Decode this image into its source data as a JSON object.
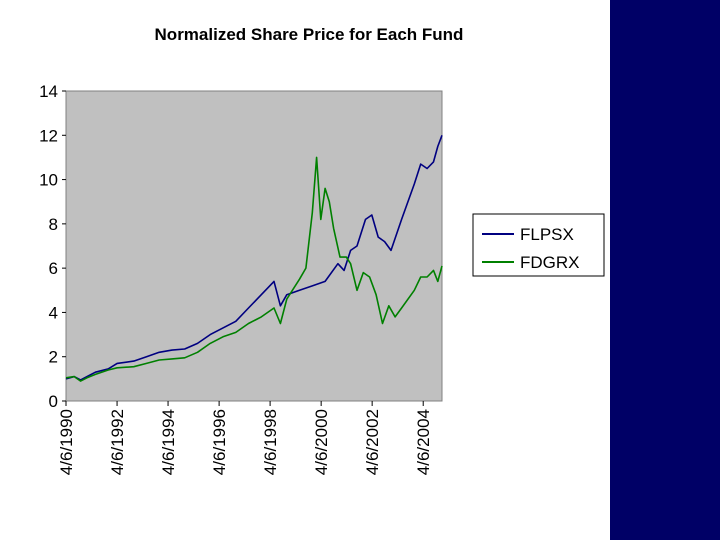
{
  "chart_data": {
    "type": "line",
    "title": "Normalized Share Price for Each Fund",
    "xlabel": "",
    "ylabel": "",
    "ylim": [
      0,
      14
    ],
    "yticks": [
      0,
      2,
      4,
      6,
      8,
      10,
      12,
      14
    ],
    "xlim": [
      "1990-04-06",
      "2004-12-31"
    ],
    "xtick_labels": [
      "4/6/1990",
      "4/6/1992",
      "4/6/1994",
      "4/6/1996",
      "4/6/1998",
      "4/6/2000",
      "4/6/2002",
      "4/6/2004"
    ],
    "xtick_dates": [
      "1990-04-06",
      "1992-04-06",
      "1994-04-06",
      "1996-04-06",
      "1998-04-06",
      "2000-04-06",
      "2002-04-06",
      "2004-04-06"
    ],
    "grid": false,
    "plot_background": "#c0c0c0",
    "legend_position": "right",
    "series": [
      {
        "name": "FLPSX",
        "color": "#000080",
        "points": [
          [
            "1990-04-06",
            1.0
          ],
          [
            "1990-08-01",
            1.1
          ],
          [
            "1990-11-01",
            0.95
          ],
          [
            "1991-02-01",
            1.1
          ],
          [
            "1991-06-01",
            1.3
          ],
          [
            "1991-12-01",
            1.45
          ],
          [
            "1992-04-06",
            1.7
          ],
          [
            "1992-12-01",
            1.8
          ],
          [
            "1993-06-01",
            2.0
          ],
          [
            "1993-12-01",
            2.2
          ],
          [
            "1994-06-01",
            2.3
          ],
          [
            "1994-12-01",
            2.35
          ],
          [
            "1995-06-01",
            2.6
          ],
          [
            "1995-12-01",
            3.0
          ],
          [
            "1996-06-01",
            3.3
          ],
          [
            "1996-12-01",
            3.6
          ],
          [
            "1997-06-01",
            4.2
          ],
          [
            "1997-12-01",
            4.8
          ],
          [
            "1998-06-01",
            5.4
          ],
          [
            "1998-09-01",
            4.3
          ],
          [
            "1998-12-01",
            4.8
          ],
          [
            "1999-06-01",
            5.0
          ],
          [
            "1999-12-01",
            5.2
          ],
          [
            "2000-06-01",
            5.4
          ],
          [
            "2000-12-01",
            6.2
          ],
          [
            "2001-03-01",
            5.9
          ],
          [
            "2001-06-01",
            6.8
          ],
          [
            "2001-09-01",
            7.0
          ],
          [
            "2002-01-01",
            8.2
          ],
          [
            "2002-04-01",
            8.4
          ],
          [
            "2002-07-01",
            7.4
          ],
          [
            "2002-10-01",
            7.2
          ],
          [
            "2003-01-01",
            6.8
          ],
          [
            "2003-06-01",
            8.2
          ],
          [
            "2003-12-01",
            9.8
          ],
          [
            "2004-03-01",
            10.7
          ],
          [
            "2004-06-01",
            10.5
          ],
          [
            "2004-09-01",
            10.8
          ],
          [
            "2004-11-01",
            11.5
          ],
          [
            "2004-12-31",
            12.0
          ]
        ]
      },
      {
        "name": "FDGRX",
        "color": "#008000",
        "points": [
          [
            "1990-04-06",
            1.05
          ],
          [
            "1990-08-01",
            1.1
          ],
          [
            "1990-11-01",
            0.9
          ],
          [
            "1991-02-01",
            1.05
          ],
          [
            "1991-06-01",
            1.2
          ],
          [
            "1991-12-01",
            1.4
          ],
          [
            "1992-04-06",
            1.5
          ],
          [
            "1992-12-01",
            1.55
          ],
          [
            "1993-06-01",
            1.7
          ],
          [
            "1993-12-01",
            1.85
          ],
          [
            "1994-06-01",
            1.9
          ],
          [
            "1994-12-01",
            1.95
          ],
          [
            "1995-06-01",
            2.2
          ],
          [
            "1995-12-01",
            2.6
          ],
          [
            "1996-06-01",
            2.9
          ],
          [
            "1996-12-01",
            3.1
          ],
          [
            "1997-06-01",
            3.5
          ],
          [
            "1997-12-01",
            3.8
          ],
          [
            "1998-06-01",
            4.2
          ],
          [
            "1998-09-01",
            3.5
          ],
          [
            "1998-12-01",
            4.6
          ],
          [
            "1999-06-01",
            5.5
          ],
          [
            "1999-09-01",
            6.0
          ],
          [
            "1999-12-01",
            8.5
          ],
          [
            "2000-02-01",
            11.0
          ],
          [
            "2000-04-01",
            8.2
          ],
          [
            "2000-06-01",
            9.6
          ],
          [
            "2000-08-01",
            9.0
          ],
          [
            "2000-10-01",
            7.8
          ],
          [
            "2001-01-01",
            6.5
          ],
          [
            "2001-04-01",
            6.5
          ],
          [
            "2001-06-01",
            6.2
          ],
          [
            "2001-09-01",
            5.0
          ],
          [
            "2001-12-01",
            5.8
          ],
          [
            "2002-03-01",
            5.6
          ],
          [
            "2002-06-01",
            4.8
          ],
          [
            "2002-09-01",
            3.5
          ],
          [
            "2002-12-01",
            4.3
          ],
          [
            "2003-03-01",
            3.8
          ],
          [
            "2003-06-01",
            4.2
          ],
          [
            "2003-12-01",
            5.0
          ],
          [
            "2004-03-01",
            5.6
          ],
          [
            "2004-06-01",
            5.6
          ],
          [
            "2004-09-01",
            5.9
          ],
          [
            "2004-11-01",
            5.4
          ],
          [
            "2004-12-31",
            6.1
          ]
        ]
      }
    ]
  }
}
